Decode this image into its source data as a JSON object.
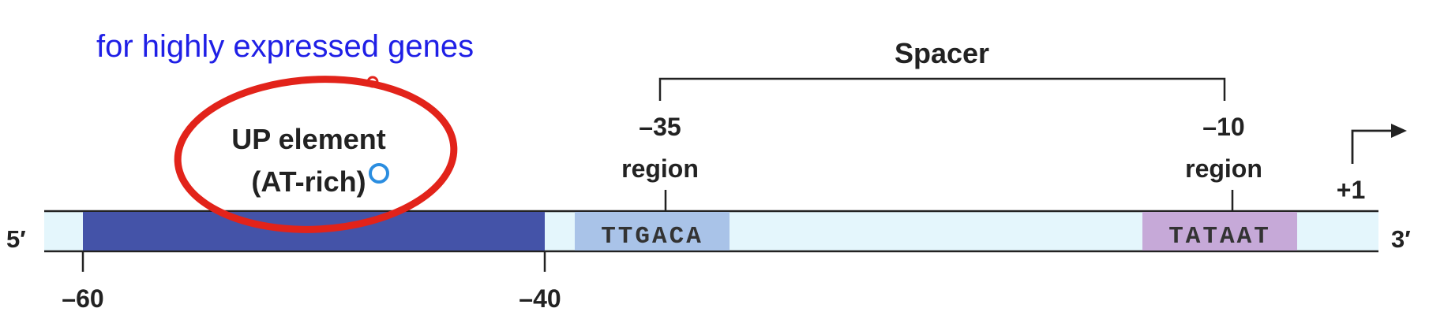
{
  "annotation": {
    "note": "for highly expressed genes",
    "note_color": "#1f1fe6",
    "circle_color": "#e2231a",
    "cursor_color": "#2a8de0"
  },
  "dna": {
    "five_prime": "5′",
    "three_prime": "3′",
    "strand_fill": "#e4f6fc",
    "up_fill": "#4453a8",
    "box35_fill": "#a9c3e8",
    "box10_fill": "#c6a9d8"
  },
  "up_element": {
    "line1": "UP element",
    "line2": "(AT-rich)"
  },
  "spacer": {
    "label": "Spacer"
  },
  "region_35": {
    "number": "–35",
    "word": "region",
    "sequence": "TTGACA"
  },
  "region_10": {
    "number": "–10",
    "word": "region",
    "sequence": "TATAAT"
  },
  "start_site": {
    "label": "+1"
  },
  "positions": {
    "left": "–60",
    "right": "–40"
  }
}
